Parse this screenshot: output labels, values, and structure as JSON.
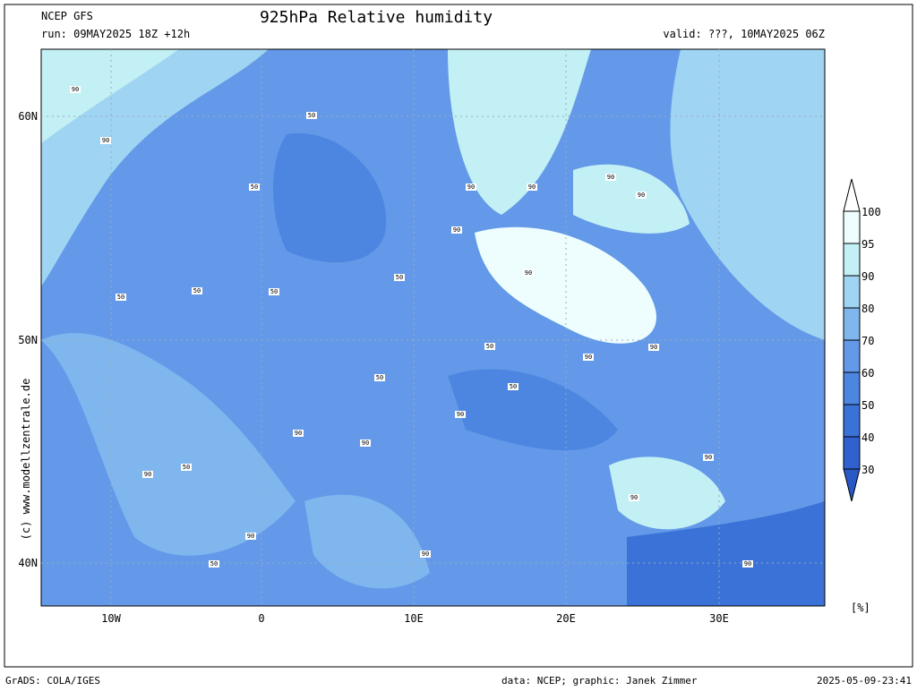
{
  "header": {
    "model": "NCEP GFS",
    "run": "run: 09MAY2025 18Z +12h",
    "title": "925hPa Relative humidity",
    "valid": "valid: ???, 10MAY2025 06Z"
  },
  "map": {
    "lat_labels": [
      "60N",
      "50N",
      "40N"
    ],
    "lon_labels": [
      "10W",
      "0",
      "10E",
      "20E",
      "30E"
    ],
    "side_text": "(c) www.modellzentrale.de",
    "contour_labels": [
      "90",
      "50",
      "90",
      "50",
      "90",
      "90",
      "90",
      "90",
      "50",
      "90",
      "50",
      "50",
      "90",
      "50",
      "50",
      "90",
      "90",
      "50",
      "90",
      "90",
      "90",
      "90",
      "50",
      "90",
      "90",
      "50",
      "90",
      "90",
      "90",
      "50"
    ]
  },
  "colorbar": {
    "levels": [
      100,
      95,
      90,
      80,
      70,
      60,
      50,
      40,
      30
    ],
    "colors": [
      "#ffffff",
      "#eefeff",
      "#c2f0f5",
      "#9fd4f2",
      "#80b6ee",
      "#6399e8",
      "#4c86e0",
      "#3b72d8",
      "#2f62cf",
      "#2a58c6"
    ],
    "unit": "[%]"
  },
  "footer": {
    "software": "GrADS: COLA/IGES",
    "credit": "data: NCEP; graphic: Janek Zimmer",
    "timestamp": "2025-05-09-23:41"
  }
}
